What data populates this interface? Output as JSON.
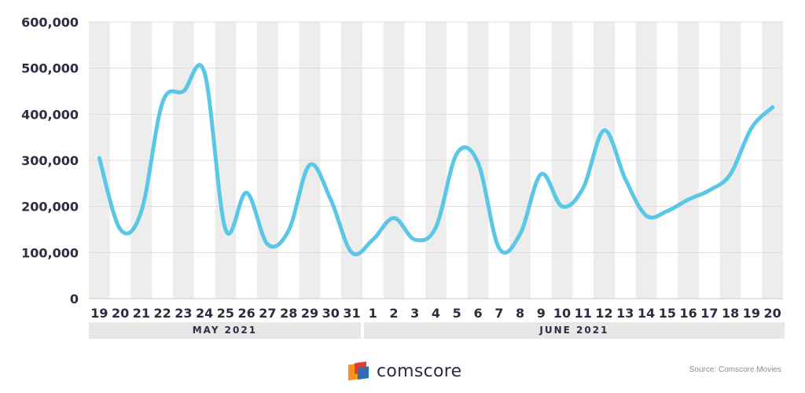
{
  "chart_data": {
    "type": "line",
    "x": [
      "19",
      "20",
      "21",
      "22",
      "23",
      "24",
      "25",
      "26",
      "27",
      "28",
      "29",
      "30",
      "31",
      "1",
      "2",
      "3",
      "4",
      "5",
      "6",
      "7",
      "8",
      "9",
      "10",
      "11",
      "12",
      "13",
      "14",
      "15",
      "16",
      "17",
      "18",
      "19",
      "20"
    ],
    "series": [
      {
        "values": [
          305000,
          150000,
          190000,
          425000,
          450000,
          490000,
          150000,
          230000,
          118000,
          148000,
          290000,
          215000,
          100000,
          128000,
          175000,
          128000,
          155000,
          315000,
          295000,
          110000,
          140000,
          270000,
          200000,
          240000,
          365000,
          260000,
          180000,
          190000,
          215000,
          235000,
          270000,
          370000,
          415000
        ],
        "color": "#5bc7e6"
      }
    ],
    "ylim": [
      0,
      600000
    ],
    "yticks": [
      {
        "value": 0,
        "label": "0"
      },
      {
        "value": 100000,
        "label": "100,000"
      },
      {
        "value": 200000,
        "label": "200,000"
      },
      {
        "value": 300000,
        "label": "300,000"
      },
      {
        "value": 400000,
        "label": "400,000"
      },
      {
        "value": 500000,
        "label": "500,000"
      },
      {
        "value": 600000,
        "label": "600,000"
      }
    ],
    "groups": [
      {
        "label": "MAY 2021",
        "count": 13
      },
      {
        "label": "JUNE 2021",
        "count": 20
      }
    ],
    "grid": true,
    "alternating_column_shading": true
  },
  "brand": {
    "name": "comscore"
  },
  "source": "Source: Comscore Movies",
  "colors": {
    "line": "#5bc7e6",
    "shade": "#ededed",
    "text": "#2b2d42",
    "logo_orange": "#f7941d",
    "logo_red": "#e63b2e",
    "logo_blue": "#2f6db3"
  }
}
